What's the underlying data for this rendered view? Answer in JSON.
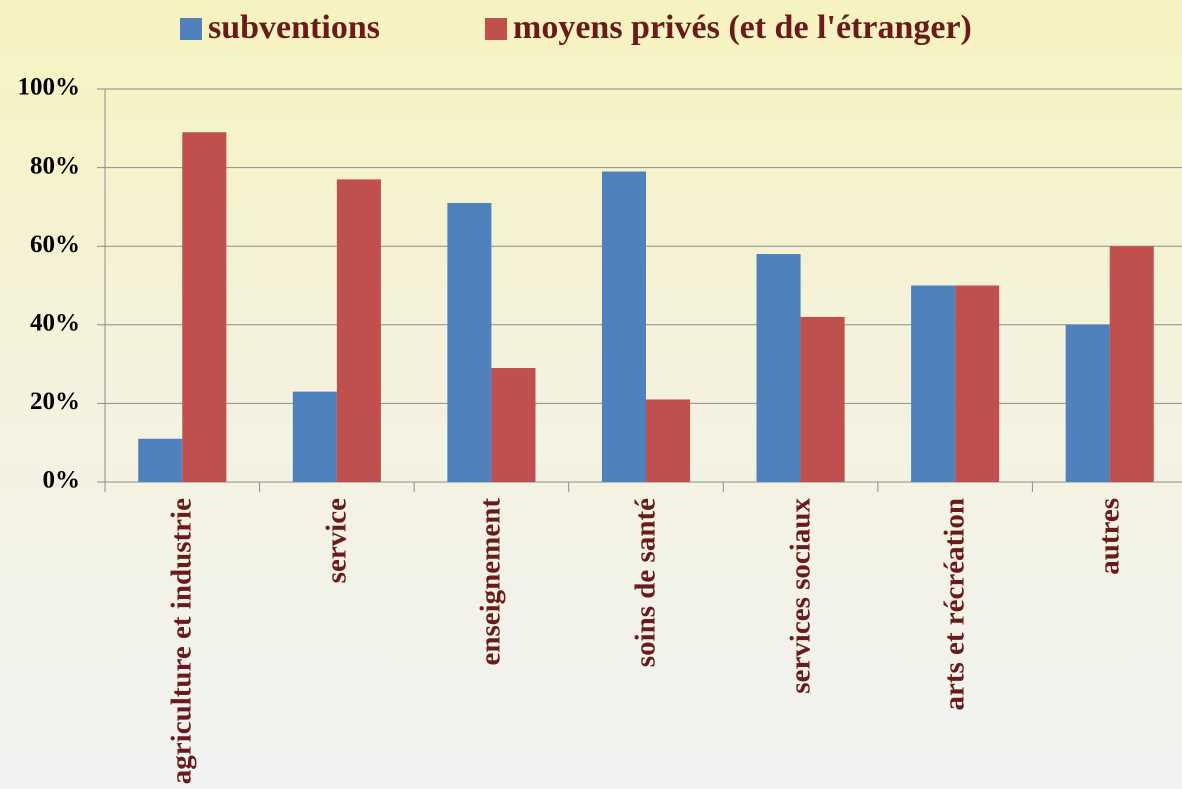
{
  "chart_data": {
    "type": "bar",
    "categories": [
      "agriculture et industrie",
      "service",
      "enseignement",
      "soins de santé",
      "services sociaux",
      "arts et récréation",
      "autres"
    ],
    "series": [
      {
        "name": "subventions",
        "color": "#4f81bd",
        "values": [
          11,
          23,
          71,
          79,
          58,
          50,
          40
        ]
      },
      {
        "name": "moyens privés (et de l'étranger)",
        "color": "#c0504d",
        "values": [
          89,
          77,
          29,
          21,
          42,
          50,
          60
        ]
      }
    ],
    "ylim": [
      0,
      100
    ],
    "yticks": [
      {
        "value": 0,
        "label": "0%"
      },
      {
        "value": 20,
        "label": "20%"
      },
      {
        "value": 40,
        "label": "40%"
      },
      {
        "value": 60,
        "label": "60%"
      },
      {
        "value": 80,
        "label": "80%"
      },
      {
        "value": 100,
        "label": "100%"
      }
    ],
    "grid": true,
    "legend": "top"
  }
}
